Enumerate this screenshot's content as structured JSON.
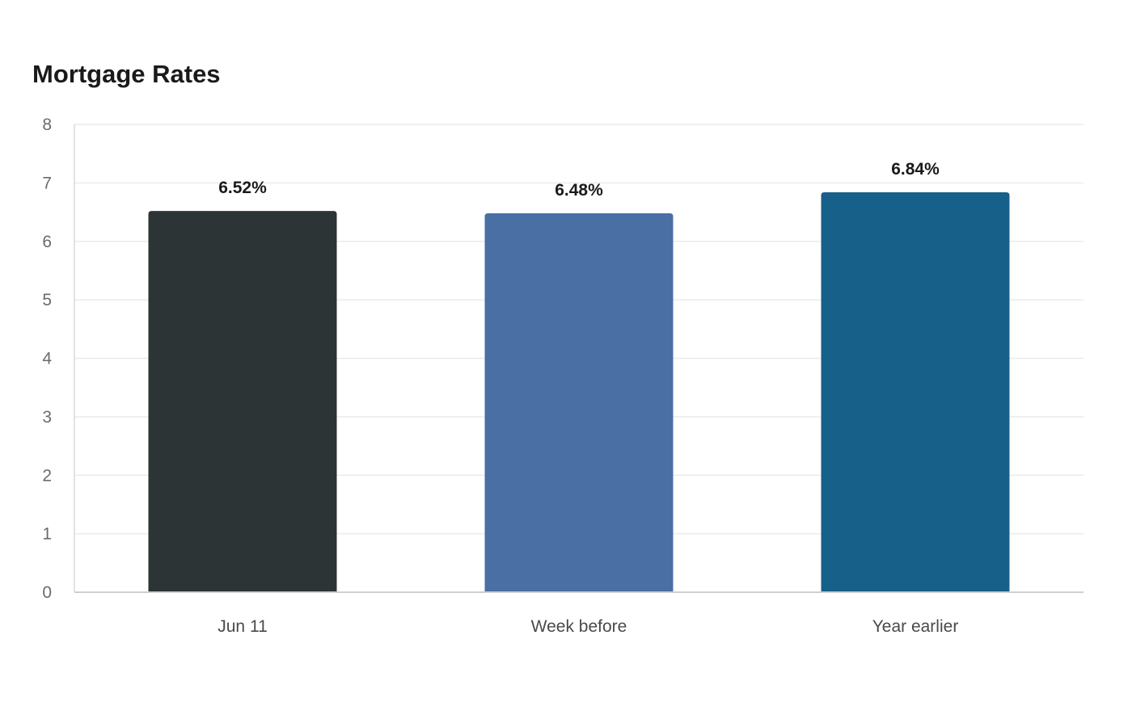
{
  "chart_data": {
    "type": "bar",
    "title": "Mortgage Rates",
    "categories": [
      "Jun 11",
      "Week before",
      "Year earlier"
    ],
    "values": [
      6.52,
      6.48,
      6.84
    ],
    "value_labels": [
      "6.52%",
      "6.48%",
      "6.84%"
    ],
    "colors": [
      "#2d3436",
      "#4a6fa5",
      "#176089"
    ],
    "ylim": [
      0,
      8
    ],
    "yticks": [
      0,
      1,
      2,
      3,
      4,
      5,
      6,
      7,
      8
    ],
    "xlabel": "",
    "ylabel": "",
    "grid": true
  }
}
